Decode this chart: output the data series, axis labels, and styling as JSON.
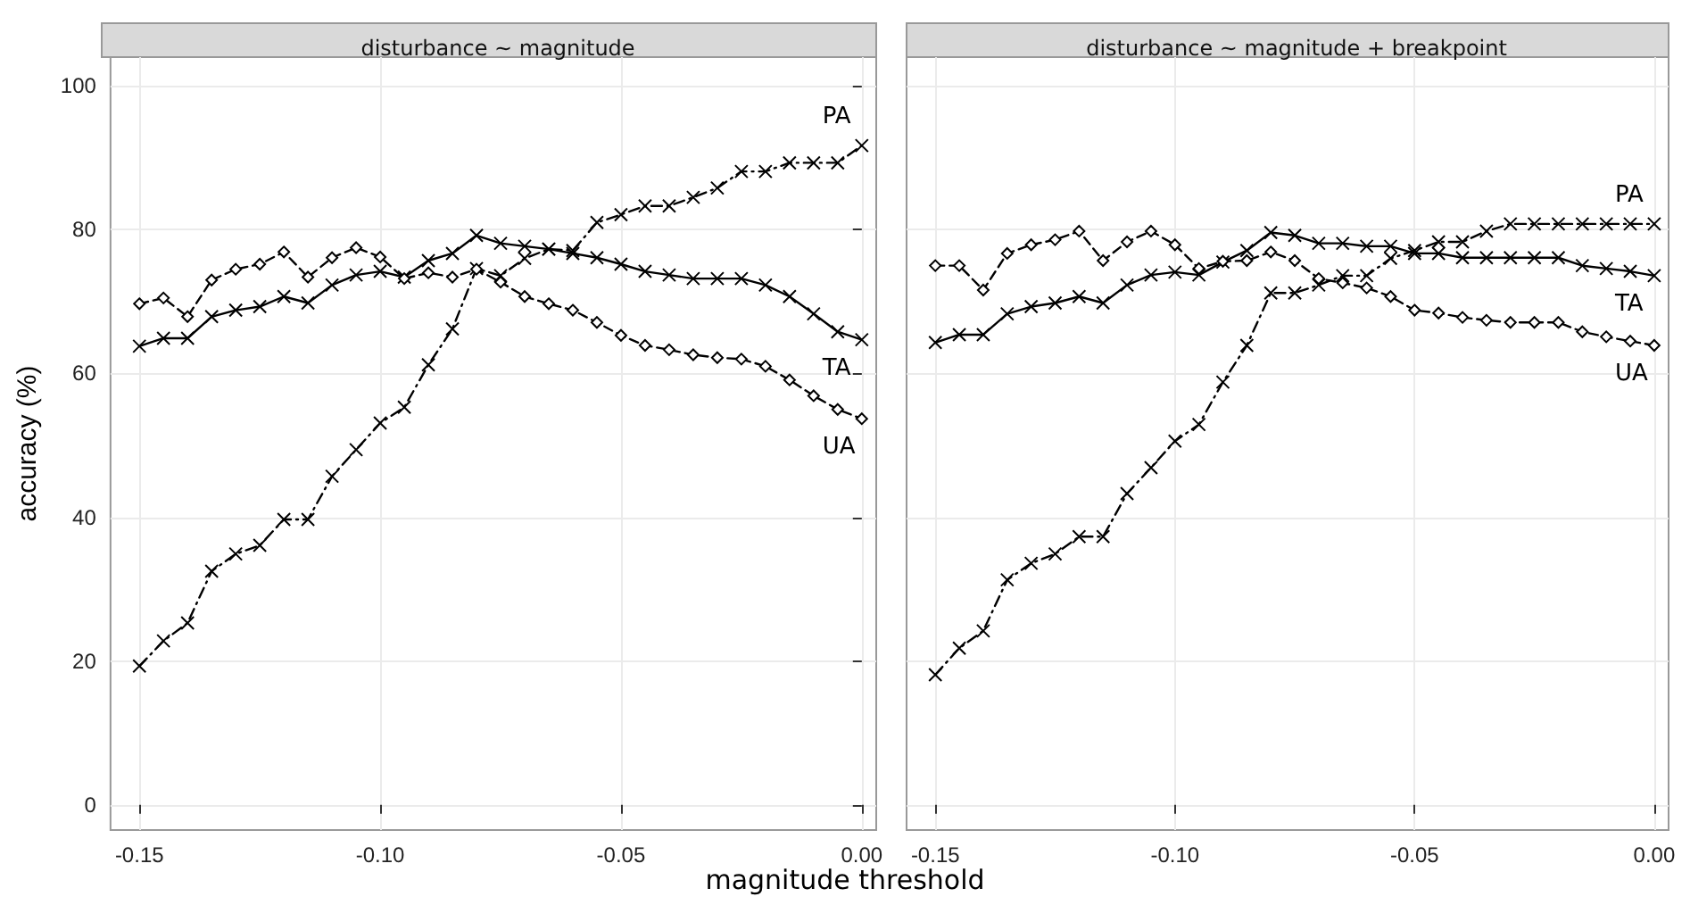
{
  "chart_data": [
    {
      "type": "line",
      "title": "disturbance ~ magnitude",
      "xlabel": "magnitude threshold",
      "ylabel": "accuracy (%)",
      "x": [
        -0.15,
        -0.145,
        -0.14,
        -0.135,
        -0.13,
        -0.125,
        -0.12,
        -0.115,
        -0.11,
        -0.105,
        -0.1,
        -0.095,
        -0.09,
        -0.085,
        -0.08,
        -0.075,
        -0.07,
        -0.065,
        -0.06,
        -0.055,
        -0.05,
        -0.045,
        -0.04,
        -0.035,
        -0.03,
        -0.025,
        -0.02,
        -0.015,
        -0.01,
        -0.005,
        0
      ],
      "series": [
        {
          "name": "PA",
          "color": "#000000",
          "marker": "cross",
          "line_style": "dotted",
          "values": [
            19.3,
            22.8,
            25.3,
            32.5,
            34.9,
            36.1,
            39.7,
            39.7,
            45.7,
            49.4,
            53.1,
            55.3,
            61.2,
            66.2,
            74.6,
            73.6,
            76.0,
            77.3,
            77.1,
            81.0,
            82.1,
            83.3,
            83.3,
            84.5,
            85.8,
            88.1,
            88.1,
            89.3,
            89.3,
            89.3,
            91.7
          ]
        },
        {
          "name": "TA",
          "color": "#000000",
          "marker": "cross",
          "line_style": "solid",
          "values": [
            63.8,
            64.9,
            64.9,
            67.9,
            68.8,
            69.3,
            70.7,
            69.8,
            72.3,
            73.7,
            74.2,
            73.4,
            75.7,
            76.7,
            79.2,
            78.1,
            77.7,
            77.3,
            76.7,
            76.1,
            75.2,
            74.2,
            73.7,
            73.2,
            73.2,
            73.2,
            72.3,
            70.7,
            68.3,
            65.8,
            64.7
          ]
        },
        {
          "name": "UA",
          "color": "#000000",
          "marker": "diamond",
          "line_style": "dashed",
          "values": [
            69.7,
            70.5,
            67.9,
            73.0,
            74.5,
            75.2,
            76.9,
            73.4,
            76.1,
            77.5,
            76.2,
            73.2,
            74.0,
            73.4,
            74.5,
            72.7,
            70.7,
            69.7,
            68.8,
            67.1,
            65.3,
            63.9,
            63.3,
            62.6,
            62.2,
            62.0,
            61.0,
            59.1,
            56.9,
            55.0,
            53.7
          ]
        }
      ],
      "xlim": [
        -0.156,
        0.003
      ],
      "xticks": [
        {
          "value": -0.15,
          "label": "-0.15"
        },
        {
          "value": -0.1,
          "label": "-0.10"
        },
        {
          "value": -0.05,
          "label": "-0.05"
        },
        {
          "value": 0,
          "label": "0.00"
        }
      ],
      "ylim": [
        -3.5,
        104
      ],
      "yticks": [
        0,
        20,
        40,
        60,
        80,
        100
      ],
      "grid": true,
      "legend": false
    },
    {
      "type": "line",
      "title": "disturbance ~ magnitude + breakpoint",
      "x": [
        -0.15,
        -0.145,
        -0.14,
        -0.135,
        -0.13,
        -0.125,
        -0.12,
        -0.115,
        -0.11,
        -0.105,
        -0.1,
        -0.095,
        -0.09,
        -0.085,
        -0.08,
        -0.075,
        -0.07,
        -0.065,
        -0.06,
        -0.055,
        -0.05,
        -0.045,
        -0.04,
        -0.035,
        -0.03,
        -0.025,
        -0.02,
        -0.015,
        -0.01,
        -0.005,
        0
      ],
      "series": [
        {
          "name": "PA",
          "color": "#000000",
          "marker": "cross",
          "line_style": "dotted",
          "values": [
            18.1,
            21.8,
            24.2,
            31.3,
            33.6,
            34.9,
            37.3,
            37.3,
            43.3,
            46.9,
            50.6,
            52.9,
            58.8,
            63.9,
            71.2,
            71.2,
            72.3,
            73.6,
            73.6,
            76.0,
            77.1,
            78.3,
            78.3,
            79.8,
            80.8,
            80.8,
            80.8,
            80.8,
            80.8,
            80.8,
            80.8
          ]
        },
        {
          "name": "TA",
          "color": "#000000",
          "marker": "cross",
          "line_style": "solid",
          "values": [
            64.3,
            65.4,
            65.4,
            68.3,
            69.3,
            69.8,
            70.7,
            69.8,
            72.3,
            73.7,
            74.1,
            73.7,
            75.5,
            77.1,
            79.6,
            79.2,
            78.1,
            78.1,
            77.7,
            77.7,
            76.7,
            76.7,
            76.1,
            76.1,
            76.1,
            76.1,
            76.1,
            75.0,
            74.6,
            74.2,
            73.6
          ]
        },
        {
          "name": "UA",
          "color": "#000000",
          "marker": "diamond",
          "line_style": "dashed",
          "values": [
            75.0,
            75.0,
            71.6,
            76.7,
            77.9,
            78.6,
            79.8,
            75.7,
            78.3,
            79.8,
            77.9,
            74.6,
            75.6,
            75.7,
            76.9,
            75.7,
            73.2,
            72.6,
            71.9,
            70.7,
            68.8,
            68.4,
            67.8,
            67.4,
            67.1,
            67.1,
            67.1,
            65.8,
            65.1,
            64.5,
            63.9
          ]
        }
      ],
      "xlim": [
        -0.156,
        0.003
      ],
      "xticks": [
        {
          "value": -0.15,
          "label": "-0.15"
        },
        {
          "value": -0.1,
          "label": "-0.10"
        },
        {
          "value": -0.05,
          "label": "-0.05"
        },
        {
          "value": 0,
          "label": "0.00"
        }
      ],
      "ylim": [
        -3.5,
        104
      ],
      "yticks": [
        0,
        20,
        40,
        60,
        80,
        100
      ],
      "grid": true,
      "legend": false,
      "tick_labels": "x"
    }
  ]
}
